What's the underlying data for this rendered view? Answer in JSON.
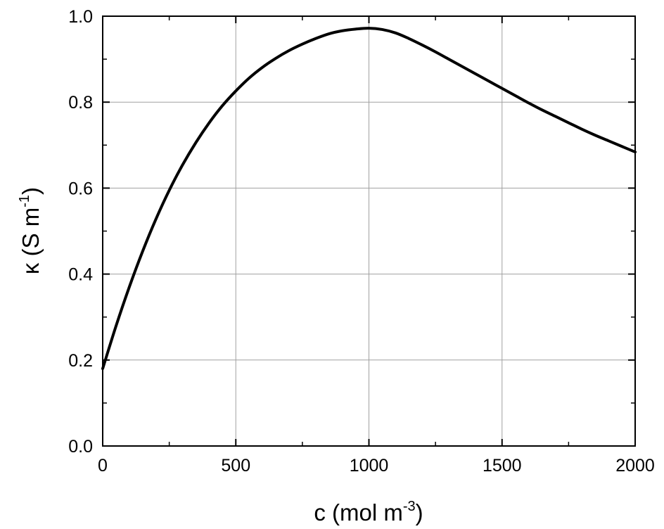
{
  "chart_data": {
    "type": "line",
    "title": "",
    "xlabel": {
      "base": "c (mol m",
      "sup": "-3",
      "end": ")"
    },
    "ylabel": {
      "base": "κ (S m",
      "sup": "-1",
      "end": ")"
    },
    "xlim": [
      0,
      2000
    ],
    "ylim": [
      0.0,
      1.0
    ],
    "x_ticks": [
      0,
      500,
      1000,
      1500,
      2000
    ],
    "x_tick_labels": [
      "0",
      "500",
      "1000",
      "1500",
      "2000"
    ],
    "x_minor_step": 250,
    "y_ticks": [
      0.0,
      0.2,
      0.4,
      0.6,
      0.8,
      1.0
    ],
    "y_tick_labels": [
      "0.0",
      "0.2",
      "0.4",
      "0.6",
      "0.8",
      "1.0"
    ],
    "y_minor_step": 0.1,
    "grid": true,
    "legend": "none",
    "colors": {
      "line": "#000000",
      "grid": "#a0a0a0",
      "axes": "#000000"
    },
    "series": [
      {
        "x": [
          0,
          50,
          100,
          150,
          200,
          250,
          300,
          350,
          400,
          450,
          500,
          550,
          600,
          650,
          700,
          750,
          800,
          850,
          900,
          950,
          1000,
          1050,
          1100,
          1150,
          1200,
          1250,
          1300,
          1350,
          1400,
          1450,
          1500,
          1550,
          1600,
          1650,
          1700,
          1750,
          1800,
          1850,
          1900,
          1950,
          2000
        ],
        "y": [
          0.18,
          0.279,
          0.37,
          0.453,
          0.528,
          0.595,
          0.654,
          0.706,
          0.752,
          0.792,
          0.826,
          0.856,
          0.881,
          0.902,
          0.92,
          0.935,
          0.948,
          0.959,
          0.966,
          0.97,
          0.972,
          0.969,
          0.961,
          0.948,
          0.933,
          0.917,
          0.9,
          0.883,
          0.866,
          0.849,
          0.832,
          0.815,
          0.798,
          0.782,
          0.767,
          0.752,
          0.737,
          0.723,
          0.71,
          0.697,
          0.684
        ]
      }
    ]
  }
}
